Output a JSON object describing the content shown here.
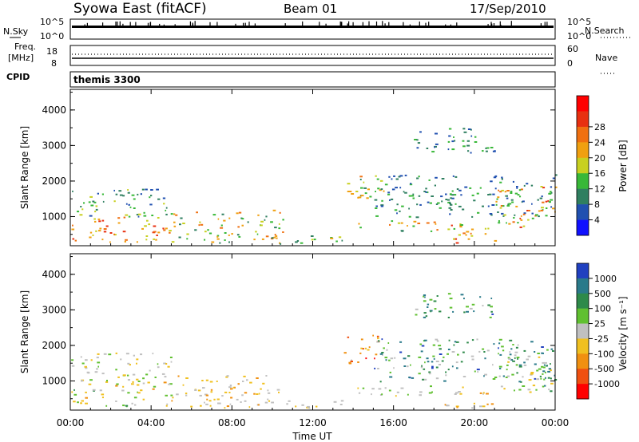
{
  "header": {
    "title": "Syowa East (fitACF)",
    "beam": "Beam 01",
    "date": "17/Sep/2010"
  },
  "strip_sky": {
    "left_label": "N.Sky",
    "right_label": "N.Search",
    "left_ticks": [
      "10^5",
      "10^0"
    ],
    "right_ticks": [
      "10^5",
      "10^0"
    ]
  },
  "strip_freq": {
    "left_label_1": "Freq.",
    "left_label_2": "[MHz]",
    "right_label": "Nave",
    "left_ticks": [
      "18",
      "8"
    ],
    "right_ticks": [
      "60",
      "0"
    ]
  },
  "cpid": {
    "label": "CPID",
    "value": "themis 3300"
  },
  "chart_data": [
    {
      "type": "heatmap",
      "panel": "power",
      "ylabel": "Slant Range [km]",
      "xlabel": "",
      "x_ticks": [
        "00:00",
        "04:00",
        "08:00",
        "12:00",
        "16:00",
        "20:00",
        "00:00"
      ],
      "y_ticks": [
        "1000",
        "2000",
        "3000",
        "4000"
      ],
      "ylim": [
        180,
        4580
      ],
      "xlim_hours": [
        0,
        24
      ],
      "colorbar": {
        "label": "Power [dB]",
        "ticks": [
          "4",
          "8",
          "12",
          "16",
          "20",
          "24",
          "28"
        ],
        "colors": [
          "#1010ff",
          "#2050b0",
          "#2f7f60",
          "#38b838",
          "#c8d020",
          "#f0a010",
          "#f07010",
          "#e83010",
          "#ff0000"
        ]
      },
      "regions": [
        {
          "h": [
            0.0,
            5.0
          ],
          "r": [
            300,
            1000
          ],
          "vmin": 16,
          "vmax": 28
        },
        {
          "h": [
            0.0,
            5.0
          ],
          "r": [
            1000,
            1800
          ],
          "vmin": 4,
          "vmax": 16
        },
        {
          "h": [
            5.0,
            10.5
          ],
          "r": [
            250,
            1200
          ],
          "vmin": 8,
          "vmax": 24
        },
        {
          "h": [
            10.5,
            13.5
          ],
          "r": [
            250,
            500
          ],
          "vmin": 8,
          "vmax": 20
        },
        {
          "h": [
            13.5,
            15.5
          ],
          "r": [
            1500,
            2300
          ],
          "vmin": 8,
          "vmax": 24
        },
        {
          "h": [
            14.0,
            19.5
          ],
          "r": [
            600,
            900
          ],
          "vmin": 10,
          "vmax": 26
        },
        {
          "h": [
            15.0,
            24.0
          ],
          "r": [
            1000,
            2200
          ],
          "vmin": 4,
          "vmax": 14
        },
        {
          "h": [
            18.5,
            21.0
          ],
          "r": [
            250,
            700
          ],
          "vmin": 16,
          "vmax": 28
        },
        {
          "h": [
            17.0,
            21.0
          ],
          "r": [
            2800,
            3500
          ],
          "vmin": 4,
          "vmax": 14
        },
        {
          "h": [
            21.0,
            24.0
          ],
          "r": [
            700,
            1900
          ],
          "vmin": 12,
          "vmax": 26
        }
      ]
    },
    {
      "type": "heatmap",
      "panel": "velocity",
      "ylabel": "Slant Range [km]",
      "xlabel": "Time UT",
      "x_ticks": [
        "00:00",
        "04:00",
        "08:00",
        "12:00",
        "16:00",
        "20:00",
        "00:00"
      ],
      "y_ticks": [
        "1000",
        "2000",
        "3000",
        "4000"
      ],
      "ylim": [
        180,
        4580
      ],
      "xlim_hours": [
        0,
        24
      ],
      "colorbar": {
        "label": "Velocity [m s^-1]",
        "ticks": [
          "1000",
          "500",
          "100",
          "25",
          "-25",
          "-100",
          "-500",
          "-1000"
        ],
        "colors": [
          "#2040c0",
          "#2a7a8a",
          "#2e8a4a",
          "#60c030",
          "#c0c0c0",
          "#f0c020",
          "#f09010",
          "#f05010",
          "#ff0000"
        ]
      },
      "regions": [
        {
          "h": [
            0.0,
            5.0
          ],
          "r": [
            300,
            1000
          ],
          "vmin": -500,
          "vmax": 500
        },
        {
          "h": [
            0.0,
            5.0
          ],
          "r": [
            1000,
            1800
          ],
          "vmin": -300,
          "vmax": 300
        },
        {
          "h": [
            5.0,
            10.5
          ],
          "r": [
            250,
            1200
          ],
          "vmin": -500,
          "vmax": 100
        },
        {
          "h": [
            10.5,
            13.5
          ],
          "r": [
            250,
            500
          ],
          "vmin": -300,
          "vmax": 100
        },
        {
          "h": [
            13.5,
            15.5
          ],
          "r": [
            1500,
            2300
          ],
          "vmin": -1000,
          "vmax": -100
        },
        {
          "h": [
            14.0,
            19.5
          ],
          "r": [
            600,
            900
          ],
          "vmin": -200,
          "vmax": 300
        },
        {
          "h": [
            15.0,
            24.0
          ],
          "r": [
            1000,
            2200
          ],
          "vmin": -100,
          "vmax": 1000
        },
        {
          "h": [
            18.5,
            21.0
          ],
          "r": [
            250,
            700
          ],
          "vmin": -500,
          "vmax": 100
        },
        {
          "h": [
            17.0,
            21.0
          ],
          "r": [
            2800,
            3500
          ],
          "vmin": 100,
          "vmax": 1000
        },
        {
          "h": [
            21.0,
            24.0
          ],
          "r": [
            700,
            1900
          ],
          "vmin": -300,
          "vmax": 800
        }
      ]
    }
  ]
}
